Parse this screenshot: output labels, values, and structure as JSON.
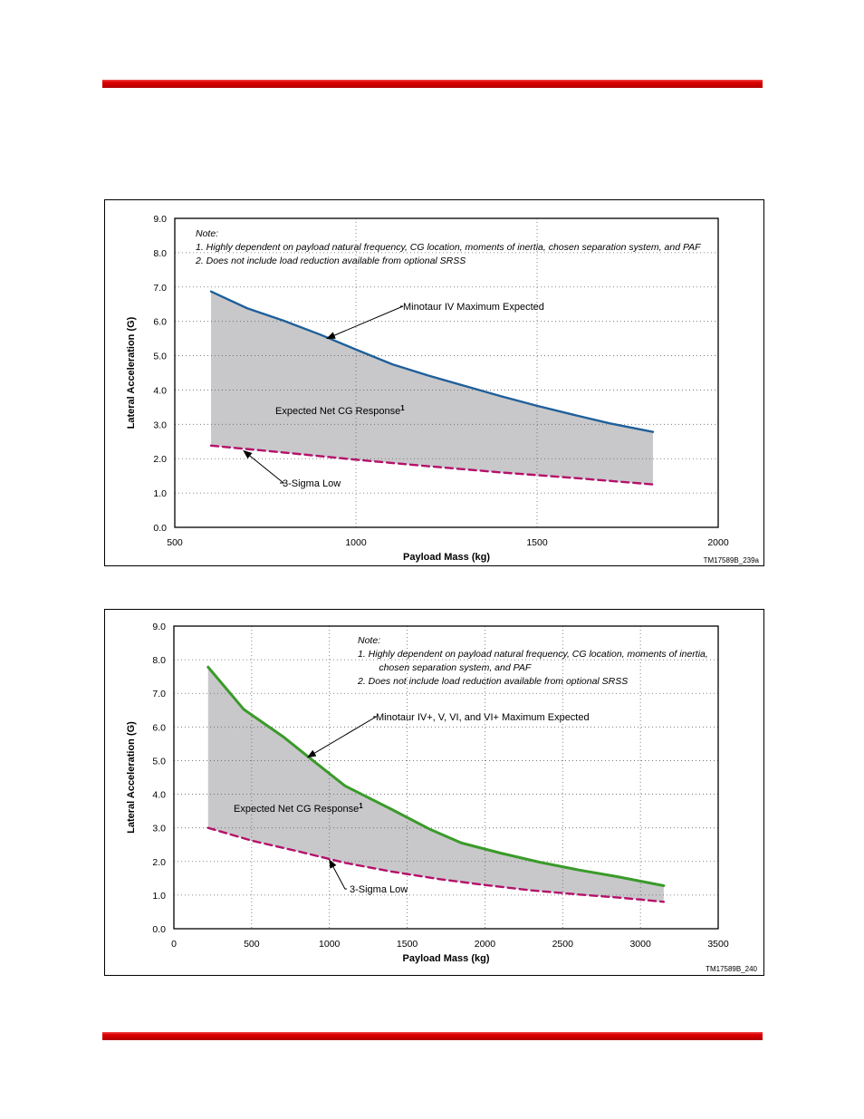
{
  "page": {
    "rule_color": "#d40000"
  },
  "chart_data": [
    {
      "type": "area",
      "xlabel": "Payload Mass (kg)",
      "ylabel": "Lateral Acceleration (G)",
      "xlim": [
        500,
        2000
      ],
      "ylim": [
        0,
        9
      ],
      "x_ticks": [
        "500",
        "1000",
        "1500",
        "2000"
      ],
      "y_ticks": [
        "0.0",
        "1.0",
        "2.0",
        "3.0",
        "4.0",
        "5.0",
        "6.0",
        "7.0",
        "8.0",
        "9.0"
      ],
      "grid": true,
      "fill_color": "#c8c8ca",
      "note_lines": [
        "Note:",
        "1. Highly dependent on payload natural frequency, CG location, moments of inertia, chosen separation system, and PAF",
        "2. Does not include load reduction available from optional SRSS"
      ],
      "fill_label": "Expected Net CG Response",
      "fill_label_sup": "1",
      "figure_code": "TM17589B_239a",
      "series": [
        {
          "name": "Minotaur IV Maximum Expected",
          "color": "#1f5f9a",
          "style": "solid",
          "x": [
            600,
            700,
            800,
            900,
            1000,
            1100,
            1200,
            1300,
            1400,
            1500,
            1600,
            1700,
            1820
          ],
          "y": [
            6.87,
            6.38,
            6.02,
            5.62,
            5.18,
            4.75,
            4.42,
            4.12,
            3.82,
            3.54,
            3.28,
            3.03,
            2.78
          ]
        },
        {
          "name": "3-Sigma Low",
          "color": "#b5106a",
          "style": "dashed",
          "x": [
            600,
            800,
            1000,
            1200,
            1400,
            1600,
            1820
          ],
          "y": [
            2.38,
            2.18,
            1.97,
            1.78,
            1.6,
            1.44,
            1.25
          ]
        }
      ],
      "annotations": [
        {
          "text": "Minotaur IV Maximum Expected",
          "target": [
            920,
            5.5
          ],
          "label_at": [
            1130,
            6.3
          ]
        },
        {
          "text": "3-Sigma Low",
          "target": [
            690,
            2.23
          ],
          "label_at": [
            800,
            1.3
          ]
        }
      ]
    },
    {
      "type": "area",
      "xlabel": "Payload Mass (kg)",
      "ylabel": "Lateral Acceleration (G)",
      "xlim": [
        0,
        3500
      ],
      "ylim": [
        0,
        9
      ],
      "x_ticks": [
        "0",
        "500",
        "1000",
        "1500",
        "2000",
        "2500",
        "3000",
        "3500"
      ],
      "y_ticks": [
        "0.0",
        "1.0",
        "2.0",
        "3.0",
        "4.0",
        "5.0",
        "6.0",
        "7.0",
        "8.0",
        "9.0"
      ],
      "grid": true,
      "fill_color": "#c8c8ca",
      "note_lines": [
        "Note:",
        "1. Highly dependent on payload natural frequency, CG location, moments of inertia,",
        "    chosen separation system, and PAF",
        "2. Does not include load reduction available from optional SRSS"
      ],
      "fill_label": "Expected Net CG Response",
      "fill_label_sup": "1",
      "figure_code": "TM17589B_240",
      "series": [
        {
          "name": "Minotaur IV+, V, VI, and VI+ Maximum Expected",
          "color": "#3a9a2a",
          "style": "solid",
          "x": [
            220,
            450,
            700,
            900,
            1100,
            1400,
            1650,
            1850,
            2100,
            2350,
            2600,
            2850,
            3150
          ],
          "y": [
            7.78,
            6.52,
            5.72,
            4.98,
            4.25,
            3.55,
            2.95,
            2.55,
            2.25,
            1.98,
            1.75,
            1.55,
            1.28
          ]
        },
        {
          "name": "3-Sigma Low",
          "color": "#b5106a",
          "style": "dashed",
          "x": [
            220,
            500,
            800,
            1100,
            1400,
            1700,
            2000,
            2300,
            2600,
            2900,
            3150
          ],
          "y": [
            3.0,
            2.62,
            2.3,
            1.96,
            1.7,
            1.48,
            1.3,
            1.14,
            1.02,
            0.91,
            0.8
          ]
        }
      ],
      "annotations": [
        {
          "text": "Minotaur IV+, V, VI, and VI+ Maximum Expected",
          "target": [
            860,
            5.1
          ],
          "label_at": [
            1300,
            6.2
          ]
        },
        {
          "text": "3-Sigma Low",
          "target": [
            1000,
            2.05
          ],
          "label_at": [
            1100,
            1.15
          ]
        }
      ]
    }
  ]
}
